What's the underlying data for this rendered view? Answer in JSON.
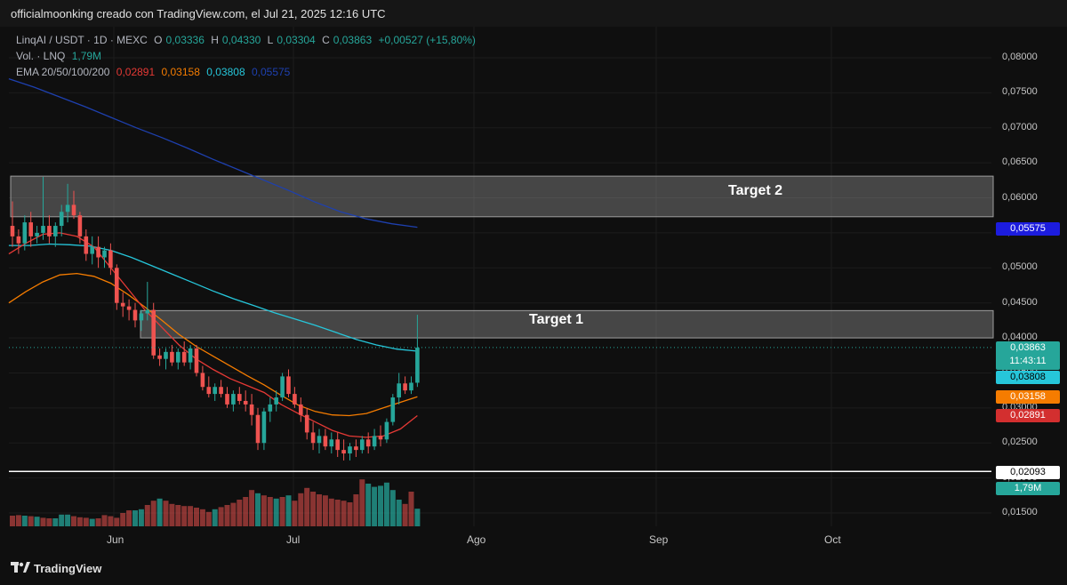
{
  "header": {
    "text": "officialmoonking creado con TradingView.com, el Jul 21, 2025 12:16 UTC"
  },
  "legend": {
    "symbol": "LinqAI / USDT · 1D · MEXC",
    "o_label": "O",
    "o_val": "0,03336",
    "h_label": "H",
    "h_val": "0,04330",
    "l_label": "L",
    "l_val": "0,03304",
    "c_label": "C",
    "c_val": "0,03863",
    "change": "+0,00527 (+15,80%)",
    "vol_label": "Vol. · LNQ",
    "vol_val": "1,79M",
    "ema_label": "EMA 20/50/100/200",
    "ema20": "0,02891",
    "ema50": "0,03158",
    "ema100": "0,03808",
    "ema200": "0,05575"
  },
  "zones": {
    "target1": "Target 1",
    "target2": "Target 2"
  },
  "price_tags": {
    "ema200": "0,05575",
    "close": "0,03863",
    "countdown": "11:43:11",
    "ema100": "0,03808",
    "ema50": "0,03158",
    "ema20": "0,02891",
    "hline": "0,02093",
    "volume": "1,79M"
  },
  "colors": {
    "up": "#26a69a",
    "down": "#ef5350",
    "ema20": "#e53935",
    "ema50": "#f57c00",
    "ema100": "#26c6da",
    "ema200": "#1e40af"
  },
  "footer": {
    "brand": "TradingView"
  },
  "chart_data": {
    "type": "candlestick",
    "symbol": "LinqAI / USDT",
    "interval": "1D",
    "exchange": "MEXC",
    "y_ticks": [
      "0,08000",
      "0,07500",
      "0,07000",
      "0,06500",
      "0,06000",
      "0,05500",
      "0,05000",
      "0,04500",
      "0,04000",
      "0,03500",
      "0,03000",
      "0,02500",
      "0,02000",
      "0,01500"
    ],
    "ylim": [
      0.0135,
      0.0835
    ],
    "x_ticks": [
      "Jun",
      "Jul",
      "Ago",
      "Sep",
      "Oct"
    ],
    "zones": [
      {
        "name": "Target 2",
        "from": 0.0573,
        "to": 0.0631
      },
      {
        "name": "Target 1",
        "from": 0.04,
        "to": 0.0439
      }
    ],
    "hline": 0.02093,
    "last_close": 0.03863,
    "candles": [
      [
        0.056,
        0.0595,
        0.053,
        0.0545
      ],
      [
        0.0545,
        0.0555,
        0.052,
        0.0535
      ],
      [
        0.0535,
        0.0575,
        0.0525,
        0.0565
      ],
      [
        0.0565,
        0.058,
        0.053,
        0.0545
      ],
      [
        0.0545,
        0.056,
        0.0535,
        0.055
      ],
      [
        0.055,
        0.063,
        0.054,
        0.056
      ],
      [
        0.056,
        0.0575,
        0.0535,
        0.0545
      ],
      [
        0.0545,
        0.0565,
        0.053,
        0.056
      ],
      [
        0.056,
        0.059,
        0.0545,
        0.058
      ],
      [
        0.058,
        0.062,
        0.0565,
        0.059
      ],
      [
        0.059,
        0.061,
        0.057,
        0.0575
      ],
      [
        0.0575,
        0.058,
        0.0535,
        0.0545
      ],
      [
        0.0545,
        0.0555,
        0.051,
        0.052
      ],
      [
        0.052,
        0.0545,
        0.0505,
        0.053
      ],
      [
        0.053,
        0.0545,
        0.05,
        0.0515
      ],
      [
        0.0515,
        0.053,
        0.05,
        0.0525
      ],
      [
        0.0525,
        0.0535,
        0.049,
        0.05
      ],
      [
        0.05,
        0.0505,
        0.044,
        0.045
      ],
      [
        0.045,
        0.0465,
        0.043,
        0.0445
      ],
      [
        0.0445,
        0.0455,
        0.0425,
        0.044
      ],
      [
        0.044,
        0.045,
        0.0415,
        0.0425
      ],
      [
        0.0425,
        0.044,
        0.041,
        0.0435
      ],
      [
        0.0435,
        0.048,
        0.0425,
        0.044
      ],
      [
        0.044,
        0.045,
        0.037,
        0.0375
      ],
      [
        0.0375,
        0.0385,
        0.036,
        0.037
      ],
      [
        0.037,
        0.0385,
        0.0355,
        0.038
      ],
      [
        0.038,
        0.039,
        0.036,
        0.0365
      ],
      [
        0.0365,
        0.0385,
        0.0355,
        0.038
      ],
      [
        0.038,
        0.0395,
        0.036,
        0.0365
      ],
      [
        0.0365,
        0.039,
        0.0355,
        0.0385
      ],
      [
        0.0385,
        0.039,
        0.0345,
        0.035
      ],
      [
        0.035,
        0.036,
        0.0325,
        0.033
      ],
      [
        0.033,
        0.0345,
        0.0315,
        0.032
      ],
      [
        0.032,
        0.0335,
        0.031,
        0.033
      ],
      [
        0.033,
        0.034,
        0.0315,
        0.032
      ],
      [
        0.032,
        0.033,
        0.03,
        0.0305
      ],
      [
        0.0305,
        0.0325,
        0.0295,
        0.032
      ],
      [
        0.032,
        0.033,
        0.0305,
        0.031
      ],
      [
        0.031,
        0.0325,
        0.0295,
        0.0305
      ],
      [
        0.0305,
        0.032,
        0.0275,
        0.029
      ],
      [
        0.029,
        0.03,
        0.024,
        0.025
      ],
      [
        0.025,
        0.03,
        0.024,
        0.0295
      ],
      [
        0.0295,
        0.0315,
        0.028,
        0.0305
      ],
      [
        0.0305,
        0.0325,
        0.0295,
        0.0315
      ],
      [
        0.0315,
        0.035,
        0.031,
        0.0345
      ],
      [
        0.0345,
        0.0355,
        0.0315,
        0.032
      ],
      [
        0.032,
        0.033,
        0.03,
        0.0305
      ],
      [
        0.0305,
        0.0315,
        0.028,
        0.029
      ],
      [
        0.029,
        0.03,
        0.0255,
        0.0265
      ],
      [
        0.0265,
        0.028,
        0.024,
        0.025
      ],
      [
        0.025,
        0.027,
        0.0235,
        0.026
      ],
      [
        0.026,
        0.027,
        0.024,
        0.0245
      ],
      [
        0.0245,
        0.0265,
        0.0235,
        0.0255
      ],
      [
        0.0255,
        0.0265,
        0.023,
        0.024
      ],
      [
        0.024,
        0.0255,
        0.0225,
        0.0235
      ],
      [
        0.0235,
        0.025,
        0.0225,
        0.0245
      ],
      [
        0.0245,
        0.0255,
        0.023,
        0.024
      ],
      [
        0.024,
        0.026,
        0.0235,
        0.0255
      ],
      [
        0.0255,
        0.0265,
        0.0235,
        0.0245
      ],
      [
        0.0245,
        0.027,
        0.024,
        0.026
      ],
      [
        0.026,
        0.0275,
        0.0245,
        0.0255
      ],
      [
        0.0255,
        0.0285,
        0.025,
        0.028
      ],
      [
        0.028,
        0.032,
        0.0275,
        0.0315
      ],
      [
        0.0315,
        0.035,
        0.0305,
        0.0335
      ],
      [
        0.0335,
        0.0345,
        0.032,
        0.0325
      ],
      [
        0.0325,
        0.0345,
        0.032,
        0.0336
      ],
      [
        0.0336,
        0.0433,
        0.033,
        0.0386
      ]
    ],
    "volume": [
      [
        20,
        0
      ],
      [
        21,
        0
      ],
      [
        20,
        1
      ],
      [
        19,
        0
      ],
      [
        18,
        1
      ],
      [
        16,
        0
      ],
      [
        15,
        0
      ],
      [
        15,
        1
      ],
      [
        22,
        1
      ],
      [
        22,
        1
      ],
      [
        19,
        0
      ],
      [
        17,
        0
      ],
      [
        16,
        0
      ],
      [
        14,
        1
      ],
      [
        15,
        0
      ],
      [
        21,
        0
      ],
      [
        19,
        0
      ],
      [
        16,
        0
      ],
      [
        25,
        0
      ],
      [
        30,
        0
      ],
      [
        30,
        1
      ],
      [
        32,
        1
      ],
      [
        40,
        0
      ],
      [
        48,
        0
      ],
      [
        52,
        1
      ],
      [
        48,
        0
      ],
      [
        42,
        0
      ],
      [
        40,
        0
      ],
      [
        38,
        0
      ],
      [
        38,
        0
      ],
      [
        35,
        0
      ],
      [
        32,
        0
      ],
      [
        27,
        0
      ],
      [
        32,
        1
      ],
      [
        36,
        0
      ],
      [
        40,
        0
      ],
      [
        44,
        0
      ],
      [
        50,
        0
      ],
      [
        55,
        0
      ],
      [
        68,
        0
      ],
      [
        62,
        1
      ],
      [
        58,
        0
      ],
      [
        55,
        0
      ],
      [
        52,
        1
      ],
      [
        55,
        0
      ],
      [
        58,
        1
      ],
      [
        48,
        0
      ],
      [
        62,
        0
      ],
      [
        72,
        0
      ],
      [
        65,
        0
      ],
      [
        60,
        0
      ],
      [
        58,
        0
      ],
      [
        52,
        0
      ],
      [
        50,
        0
      ],
      [
        48,
        0
      ],
      [
        45,
        0
      ],
      [
        60,
        0
      ],
      [
        88,
        0
      ],
      [
        80,
        1
      ],
      [
        74,
        1
      ],
      [
        76,
        1
      ],
      [
        82,
        1
      ],
      [
        68,
        1
      ],
      [
        50,
        1
      ],
      [
        42,
        0
      ],
      [
        65,
        0
      ],
      [
        33,
        1
      ]
    ],
    "ema20": [
      0.052,
      0.0535,
      0.0548,
      0.055,
      0.0545,
      0.053,
      0.05,
      0.047,
      0.044,
      0.0415,
      0.039,
      0.037,
      0.0355,
      0.0342,
      0.0332,
      0.0322,
      0.0305,
      0.0292,
      0.028,
      0.0268,
      0.026,
      0.0258,
      0.026,
      0.027,
      0.0289
    ],
    "ema50": [
      0.045,
      0.0466,
      0.048,
      0.049,
      0.0492,
      0.0488,
      0.0478,
      0.0462,
      0.0444,
      0.0425,
      0.0405,
      0.0388,
      0.0374,
      0.036,
      0.0346,
      0.0333,
      0.0318,
      0.0304,
      0.0295,
      0.029,
      0.0289,
      0.0292,
      0.03,
      0.0308,
      0.0316
    ],
    "ema100": [
      0.0532,
      0.0532,
      0.0534,
      0.0533,
      0.0531,
      0.0525,
      0.0515,
      0.0503,
      0.0491,
      0.0479,
      0.0467,
      0.0456,
      0.0446,
      0.0436,
      0.0427,
      0.0418,
      0.0408,
      0.0398,
      0.039,
      0.0384,
      0.0381
    ],
    "ema200": [
      0.077,
      0.0758,
      0.0744,
      0.073,
      0.0715,
      0.07,
      0.0686,
      0.0671,
      0.0655,
      0.064,
      0.0625,
      0.061,
      0.0594,
      0.058,
      0.057,
      0.0563,
      0.0558
    ],
    "ylabel": "",
    "xlabel": ""
  }
}
